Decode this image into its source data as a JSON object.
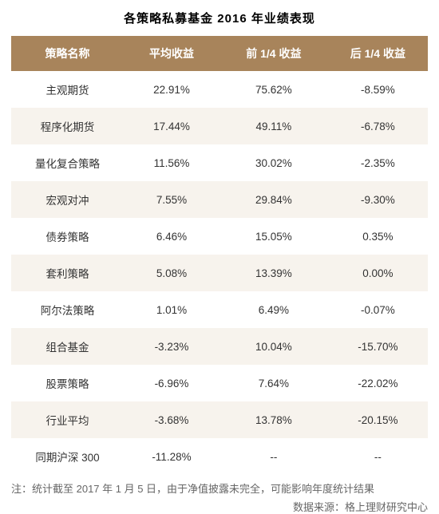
{
  "title": "各策略私募基金 2016 年业绩表现",
  "columns": [
    "策略名称",
    "平均收益",
    "前 1/4 收益",
    "后 1/4 收益"
  ],
  "rows": [
    [
      "主观期货",
      "22.91%",
      "75.62%",
      "-8.59%"
    ],
    [
      "程序化期货",
      "17.44%",
      "49.11%",
      "-6.78%"
    ],
    [
      "量化复合策略",
      "11.56%",
      "30.02%",
      "-2.35%"
    ],
    [
      "宏观对冲",
      "7.55%",
      "29.84%",
      "-9.30%"
    ],
    [
      "债券策略",
      "6.46%",
      "15.05%",
      "0.35%"
    ],
    [
      "套利策略",
      "5.08%",
      "13.39%",
      "0.00%"
    ],
    [
      "阿尔法策略",
      "1.01%",
      "6.49%",
      "-0.07%"
    ],
    [
      "组合基金",
      "-3.23%",
      "10.04%",
      "-15.70%"
    ],
    [
      "股票策略",
      "-6.96%",
      "7.64%",
      "-22.02%"
    ],
    [
      "行业平均",
      "-3.68%",
      "13.78%",
      "-20.15%"
    ],
    [
      "同期沪深 300",
      "-11.28%",
      "--",
      "--"
    ]
  ],
  "footnote": "注：统计截至 2017 年 1 月 5 日，由于净值披露未完全，可能影响年度统计结果",
  "source": "数据来源：格上理财研究中心",
  "style": {
    "header_bg": "#a8845b",
    "header_fg": "#ffffff",
    "row_odd_bg": "#ffffff",
    "row_even_bg": "#f7f3ed",
    "title_fontsize": 15,
    "header_fontsize": 14,
    "cell_fontsize": 13.5,
    "footnote_fontsize": 13,
    "footnote_color": "#666666",
    "cell_color": "#333333"
  }
}
